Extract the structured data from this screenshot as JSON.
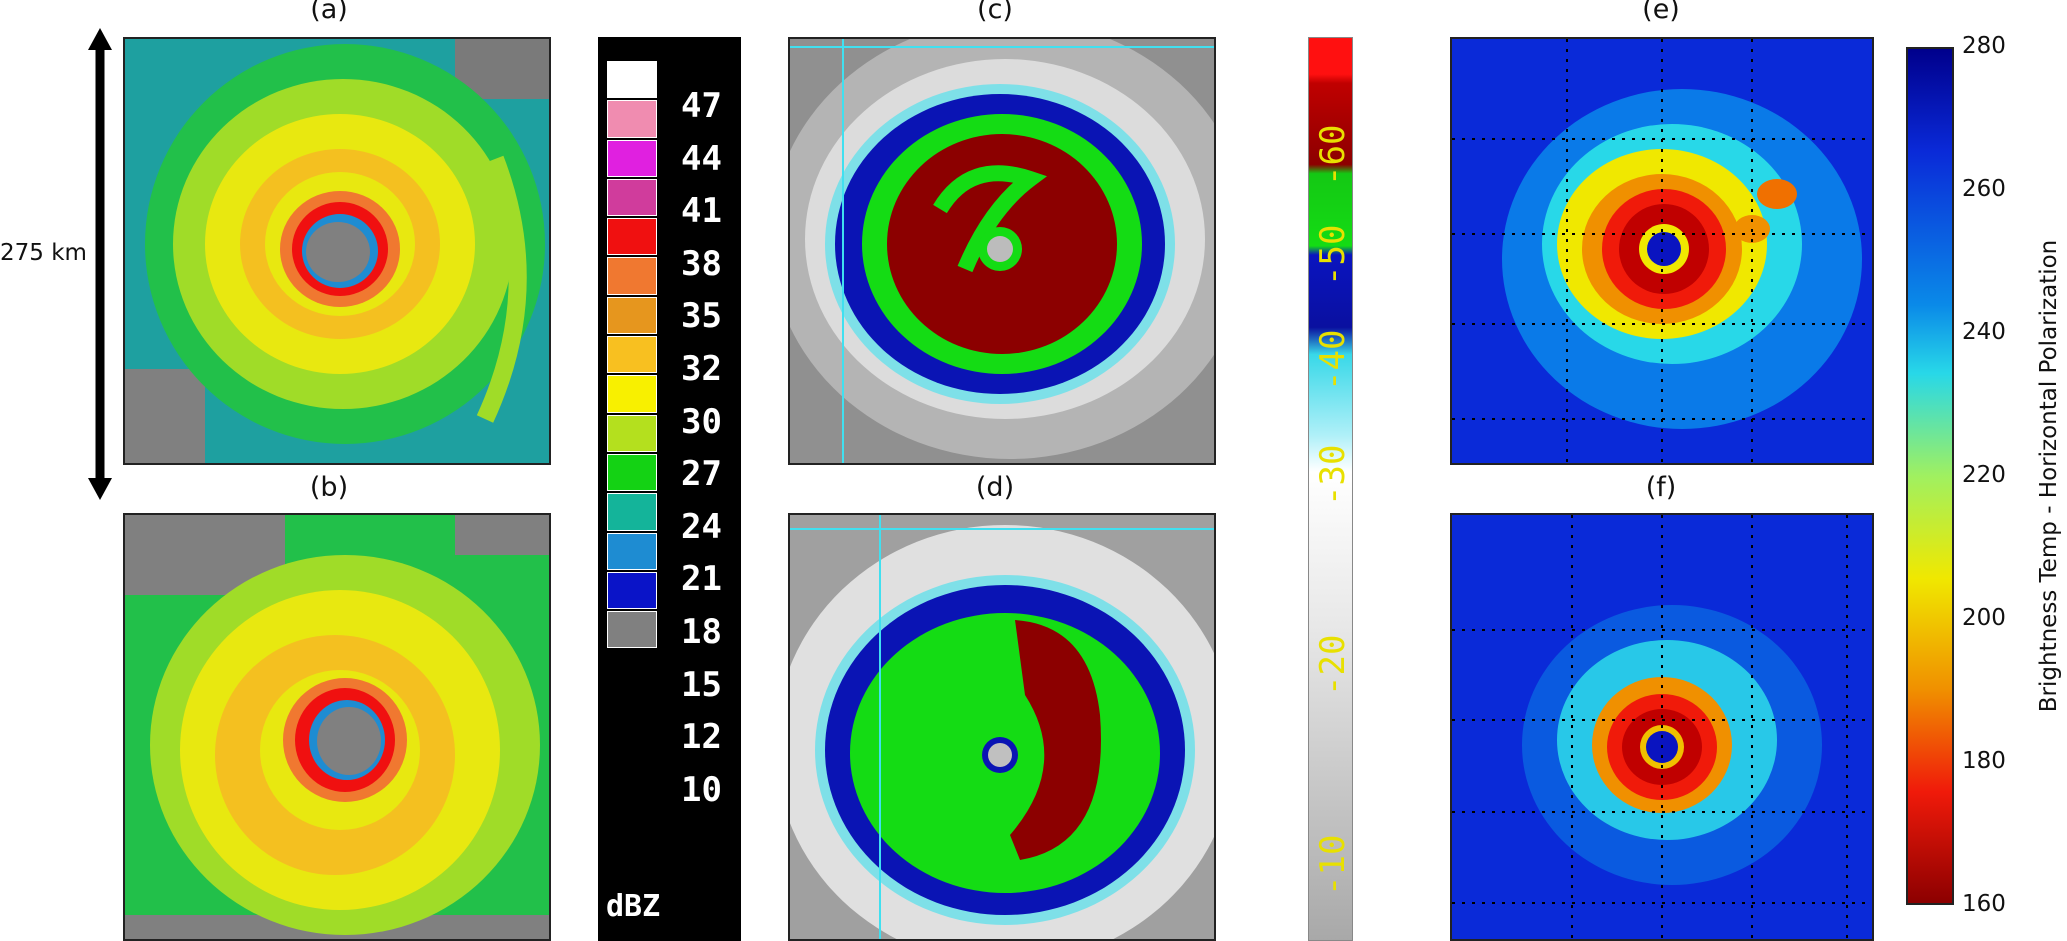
{
  "panels": {
    "a": "(a)",
    "b": "(b)",
    "c": "(c)",
    "d": "(d)",
    "e": "(e)",
    "f": "(f)"
  },
  "scale_label": "275 km",
  "radar_colorbar": {
    "unit": "dBZ",
    "levels": [
      "47",
      "44",
      "41",
      "38",
      "35",
      "32",
      "30",
      "27",
      "24",
      "21",
      "18",
      "15",
      "12",
      "10"
    ],
    "colors": [
      "#ffffff",
      "#f08cb0",
      "#e020e0",
      "#d03c9c",
      "#f01010",
      "#f07830",
      "#e6961e",
      "#f8c020",
      "#f8f000",
      "#b4e01e",
      "#14d214",
      "#14b49a",
      "#1e8cd2",
      "#0a14c8",
      "#808080"
    ]
  },
  "ir_colorbar": {
    "labels": [
      "-10",
      "-20",
      "-30",
      "-40",
      "-50",
      "-60"
    ],
    "colors": [
      "#c8c8c8",
      "#f0f0f0",
      "#eeeeee",
      "#dedede",
      "#40e0f0",
      "#0a14b4",
      "#14dc14",
      "#8c0000",
      "#ff1010"
    ]
  },
  "tb_colorbar": {
    "title": "Brightness Temp - Horizontal Polarization",
    "ticks": [
      "280",
      "260",
      "240",
      "220",
      "200",
      "180",
      "160"
    ],
    "colors": [
      "#00008c",
      "#0a2ad8",
      "#0a7ae8",
      "#28d8e8",
      "#a0f060",
      "#f0e800",
      "#f09000",
      "#f01a0a",
      "#8c0000"
    ]
  }
}
